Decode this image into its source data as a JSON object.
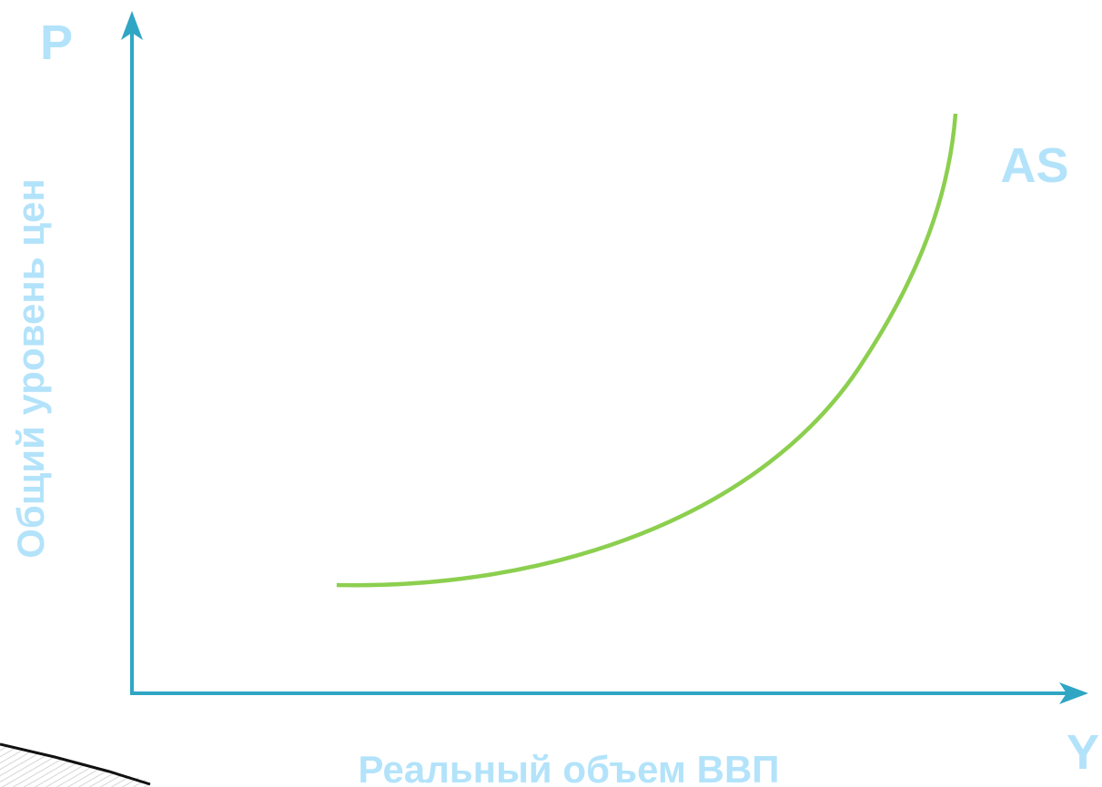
{
  "axes": {
    "y": {
      "symbol": "P",
      "label": "Общий уровень цен"
    },
    "x": {
      "symbol": "Y",
      "label": "Реальный объем ВВП"
    }
  },
  "curve": {
    "label": "AS"
  }
}
